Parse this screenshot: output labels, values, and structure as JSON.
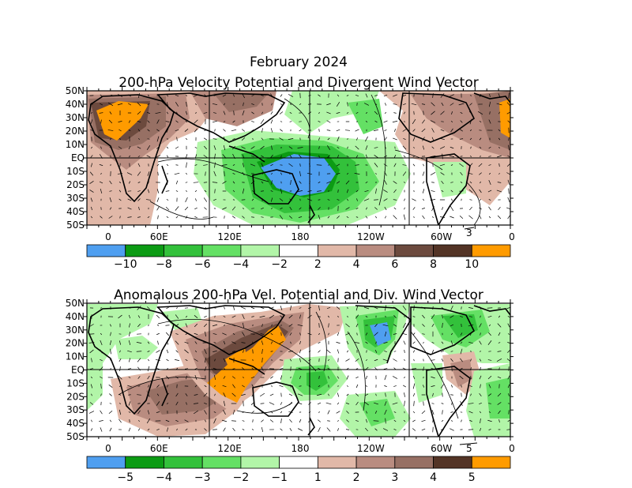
{
  "title": "February 2024",
  "colors": {
    "blue": "#4f9ff0",
    "green_dark": "#0c9b14",
    "green_mid": "#33c13b",
    "green_light": "#64e064",
    "green_pale": "#b2f5a8",
    "white": "#ffffff",
    "brown_pale": "#e1b8a8",
    "brown_light": "#b98c80",
    "brown_mid": "#977064",
    "brown_dark": "#6c4a3e",
    "orange": "#ff9b00",
    "land": "#000000"
  },
  "panels": [
    {
      "title": "200-hPa Velocity Potential and Divergent Wind Vector",
      "lat_labels": [
        "50N",
        "40N",
        "30N",
        "20N",
        "10N",
        "EQ",
        "10S",
        "20S",
        "30S",
        "40S",
        "50S"
      ],
      "lon_labels": [
        "0",
        "60E",
        "120E",
        "180",
        "120W",
        "60W",
        "0"
      ],
      "vector_ref": "3",
      "colorbar": {
        "labels": [
          "−10",
          "−8",
          "−6",
          "−4",
          "−2",
          "2",
          "4",
          "6",
          "8",
          "10"
        ],
        "swatch_colors": [
          "#4f9ff0",
          "#0c9b14",
          "#33c13b",
          "#64e064",
          "#b2f5a8",
          "#ffffff",
          "#e1b8a8",
          "#b98c80",
          "#6c4a3e",
          "#533426",
          "#ff9b00"
        ]
      }
    },
    {
      "title": "Anomalous 200-hPa Vel. Potential and Div. Wind Vector",
      "lat_labels": [
        "50N",
        "40N",
        "30N",
        "20N",
        "10N",
        "EQ",
        "10S",
        "20S",
        "30S",
        "40S",
        "50S"
      ],
      "lon_labels": [
        "0",
        "60E",
        "120E",
        "180",
        "120W",
        "60W",
        "0"
      ],
      "vector_ref": "5",
      "colorbar": {
        "labels": [
          "−5",
          "−4",
          "−3",
          "−2",
          "−1",
          "1",
          "2",
          "3",
          "4",
          "5"
        ],
        "swatch_colors": [
          "#4f9ff0",
          "#0c9b14",
          "#33c13b",
          "#64e064",
          "#b2f5a8",
          "#ffffff",
          "#e1b8a8",
          "#b98c80",
          "#977064",
          "#533426",
          "#ff9b00"
        ]
      }
    }
  ]
}
